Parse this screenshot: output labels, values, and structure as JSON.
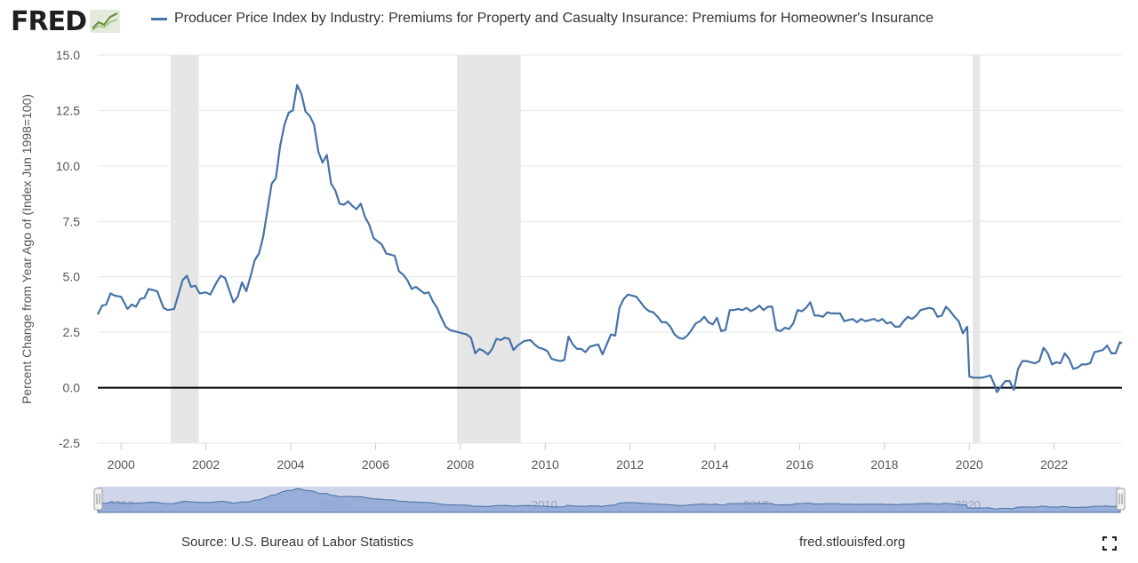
{
  "brand": {
    "logo_text": "FRED"
  },
  "legend": {
    "series_label": "Producer Price Index by Industry: Premiums for Property and Casualty Insurance: Premiums for Homeowner's Insurance",
    "color": "#4572a7"
  },
  "footer": {
    "source": "Source: U.S. Bureau of Labor Statistics",
    "site": "fred.stlouisfed.org"
  },
  "colors": {
    "series": "#4572a7",
    "recession": "#e6e6e6",
    "navigator_fill": "#8ea6d3",
    "navigator_bg": "#cfd6ea",
    "zero_line": "#000000"
  },
  "chart_data": {
    "type": "line",
    "title": "",
    "xlabel": "",
    "ylabel": "Percent Change from Year Ago of (Index Jun 1998=100)",
    "xlim": [
      1999.45,
      2023.6
    ],
    "ylim": [
      -2.5,
      15.0
    ],
    "yticks": [
      "-2.5",
      "0.0",
      "2.5",
      "5.0",
      "7.5",
      "10.0",
      "12.5",
      "15.0"
    ],
    "xticks": [
      "2000",
      "2002",
      "2004",
      "2006",
      "2008",
      "2010",
      "2012",
      "2014",
      "2016",
      "2018",
      "2020",
      "2022"
    ],
    "navigator_ticks": [
      "2000",
      "2005",
      "2010",
      "2015",
      "2020"
    ],
    "grid": "horizontal",
    "recessions": [
      [
        2001.17,
        2001.83
      ],
      [
        2007.92,
        2009.42
      ],
      [
        2020.08,
        2020.25
      ]
    ],
    "series": [
      {
        "name": "Producer Price Index by Industry: Premiums for Property and Casualty Insurance: Premiums for Homeowner's Insurance",
        "points": [
          [
            1999.45,
            3.3
          ],
          [
            1999.55,
            3.7
          ],
          [
            1999.65,
            3.75
          ],
          [
            1999.75,
            4.25
          ],
          [
            1999.85,
            4.15
          ],
          [
            2000.0,
            4.1
          ],
          [
            2000.15,
            3.55
          ],
          [
            2000.25,
            3.75
          ],
          [
            2000.35,
            3.65
          ],
          [
            2000.45,
            4.0
          ],
          [
            2000.55,
            4.05
          ],
          [
            2000.65,
            4.45
          ],
          [
            2000.85,
            4.35
          ],
          [
            2001.0,
            3.6
          ],
          [
            2001.1,
            3.5
          ],
          [
            2001.25,
            3.55
          ],
          [
            2001.45,
            4.85
          ],
          [
            2001.55,
            5.05
          ],
          [
            2001.65,
            4.55
          ],
          [
            2001.75,
            4.6
          ],
          [
            2001.85,
            4.25
          ],
          [
            2002.0,
            4.3
          ],
          [
            2002.1,
            4.2
          ],
          [
            2002.25,
            4.75
          ],
          [
            2002.35,
            5.05
          ],
          [
            2002.45,
            4.95
          ],
          [
            2002.55,
            4.4
          ],
          [
            2002.65,
            3.85
          ],
          [
            2002.75,
            4.1
          ],
          [
            2002.85,
            4.75
          ],
          [
            2002.95,
            4.35
          ],
          [
            2003.05,
            5.0
          ],
          [
            2003.15,
            5.75
          ],
          [
            2003.25,
            6.05
          ],
          [
            2003.35,
            6.8
          ],
          [
            2003.45,
            8.0
          ],
          [
            2003.55,
            9.2
          ],
          [
            2003.65,
            9.45
          ],
          [
            2003.75,
            10.9
          ],
          [
            2003.85,
            11.85
          ],
          [
            2003.95,
            12.4
          ],
          [
            2004.05,
            12.5
          ],
          [
            2004.15,
            13.65
          ],
          [
            2004.25,
            13.25
          ],
          [
            2004.35,
            12.45
          ],
          [
            2004.45,
            12.25
          ],
          [
            2004.55,
            11.85
          ],
          [
            2004.65,
            10.65
          ],
          [
            2004.75,
            10.15
          ],
          [
            2004.85,
            10.5
          ],
          [
            2004.95,
            9.2
          ],
          [
            2005.05,
            8.9
          ],
          [
            2005.15,
            8.3
          ],
          [
            2005.25,
            8.25
          ],
          [
            2005.35,
            8.4
          ],
          [
            2005.45,
            8.2
          ],
          [
            2005.55,
            8.05
          ],
          [
            2005.65,
            8.3
          ],
          [
            2005.75,
            7.7
          ],
          [
            2005.85,
            7.35
          ],
          [
            2005.95,
            6.75
          ],
          [
            2006.05,
            6.6
          ],
          [
            2006.15,
            6.45
          ],
          [
            2006.25,
            6.05
          ],
          [
            2006.35,
            6.0
          ],
          [
            2006.45,
            5.95
          ],
          [
            2006.55,
            5.25
          ],
          [
            2006.65,
            5.1
          ],
          [
            2006.75,
            4.85
          ],
          [
            2006.85,
            4.45
          ],
          [
            2006.95,
            4.55
          ],
          [
            2007.05,
            4.4
          ],
          [
            2007.15,
            4.25
          ],
          [
            2007.25,
            4.3
          ],
          [
            2007.35,
            3.9
          ],
          [
            2007.45,
            3.6
          ],
          [
            2007.55,
            3.15
          ],
          [
            2007.65,
            2.75
          ],
          [
            2007.75,
            2.6
          ],
          [
            2007.85,
            2.55
          ],
          [
            2007.95,
            2.5
          ],
          [
            2008.05,
            2.45
          ],
          [
            2008.15,
            2.4
          ],
          [
            2008.25,
            2.25
          ],
          [
            2008.35,
            1.55
          ],
          [
            2008.45,
            1.75
          ],
          [
            2008.55,
            1.65
          ],
          [
            2008.65,
            1.5
          ],
          [
            2008.75,
            1.75
          ],
          [
            2008.85,
            2.2
          ],
          [
            2008.95,
            2.15
          ],
          [
            2009.05,
            2.25
          ],
          [
            2009.15,
            2.2
          ],
          [
            2009.25,
            1.7
          ],
          [
            2009.35,
            1.9
          ],
          [
            2009.5,
            2.1
          ],
          [
            2009.65,
            2.15
          ],
          [
            2009.75,
            1.95
          ],
          [
            2009.85,
            1.8
          ],
          [
            2009.95,
            1.75
          ],
          [
            2010.05,
            1.65
          ],
          [
            2010.15,
            1.3
          ],
          [
            2010.25,
            1.25
          ],
          [
            2010.35,
            1.2
          ],
          [
            2010.45,
            1.25
          ],
          [
            2010.55,
            2.3
          ],
          [
            2010.65,
            1.95
          ],
          [
            2010.75,
            1.75
          ],
          [
            2010.85,
            1.75
          ],
          [
            2010.95,
            1.6
          ],
          [
            2011.05,
            1.85
          ],
          [
            2011.15,
            1.9
          ],
          [
            2011.25,
            1.95
          ],
          [
            2011.35,
            1.5
          ],
          [
            2011.45,
            1.95
          ],
          [
            2011.55,
            2.4
          ],
          [
            2011.65,
            2.35
          ],
          [
            2011.75,
            3.6
          ],
          [
            2011.85,
            4.0
          ],
          [
            2011.95,
            4.2
          ],
          [
            2012.05,
            4.15
          ],
          [
            2012.15,
            4.1
          ],
          [
            2012.25,
            3.85
          ],
          [
            2012.35,
            3.6
          ],
          [
            2012.45,
            3.45
          ],
          [
            2012.55,
            3.4
          ],
          [
            2012.65,
            3.2
          ],
          [
            2012.75,
            2.95
          ],
          [
            2012.85,
            2.95
          ],
          [
            2012.95,
            2.75
          ],
          [
            2013.05,
            2.4
          ],
          [
            2013.15,
            2.25
          ],
          [
            2013.25,
            2.2
          ],
          [
            2013.35,
            2.35
          ],
          [
            2013.45,
            2.6
          ],
          [
            2013.55,
            2.9
          ],
          [
            2013.65,
            3.0
          ],
          [
            2013.75,
            3.2
          ],
          [
            2013.85,
            2.95
          ],
          [
            2013.95,
            2.85
          ],
          [
            2014.05,
            3.15
          ],
          [
            2014.15,
            2.55
          ],
          [
            2014.25,
            2.6
          ],
          [
            2014.35,
            3.5
          ],
          [
            2014.45,
            3.5
          ],
          [
            2014.55,
            3.55
          ],
          [
            2014.65,
            3.5
          ],
          [
            2014.75,
            3.6
          ],
          [
            2014.85,
            3.45
          ],
          [
            2014.95,
            3.55
          ],
          [
            2015.05,
            3.7
          ],
          [
            2015.15,
            3.5
          ],
          [
            2015.25,
            3.65
          ],
          [
            2015.35,
            3.65
          ],
          [
            2015.45,
            2.6
          ],
          [
            2015.55,
            2.55
          ],
          [
            2015.65,
            2.7
          ],
          [
            2015.75,
            2.65
          ],
          [
            2015.85,
            2.9
          ],
          [
            2015.95,
            3.5
          ],
          [
            2016.05,
            3.45
          ],
          [
            2016.15,
            3.6
          ],
          [
            2016.25,
            3.85
          ],
          [
            2016.35,
            3.25
          ],
          [
            2016.45,
            3.25
          ],
          [
            2016.55,
            3.2
          ],
          [
            2016.65,
            3.4
          ],
          [
            2016.75,
            3.35
          ],
          [
            2016.85,
            3.35
          ],
          [
            2016.95,
            3.35
          ],
          [
            2017.05,
            3.0
          ],
          [
            2017.15,
            3.05
          ],
          [
            2017.25,
            3.1
          ],
          [
            2017.35,
            2.95
          ],
          [
            2017.45,
            3.1
          ],
          [
            2017.55,
            3.0
          ],
          [
            2017.65,
            3.05
          ],
          [
            2017.75,
            3.1
          ],
          [
            2017.85,
            3.0
          ],
          [
            2017.95,
            3.1
          ],
          [
            2018.05,
            2.9
          ],
          [
            2018.15,
            2.95
          ],
          [
            2018.25,
            2.75
          ],
          [
            2018.35,
            2.75
          ],
          [
            2018.45,
            3.0
          ],
          [
            2018.55,
            3.2
          ],
          [
            2018.65,
            3.1
          ],
          [
            2018.75,
            3.25
          ],
          [
            2018.85,
            3.5
          ],
          [
            2018.95,
            3.55
          ],
          [
            2019.05,
            3.6
          ],
          [
            2019.15,
            3.55
          ],
          [
            2019.25,
            3.2
          ],
          [
            2019.35,
            3.25
          ],
          [
            2019.45,
            3.65
          ],
          [
            2019.55,
            3.45
          ],
          [
            2019.65,
            3.2
          ],
          [
            2019.75,
            3.0
          ],
          [
            2019.85,
            2.45
          ],
          [
            2019.95,
            2.75
          ],
          [
            2020.0,
            0.5
          ],
          [
            2020.1,
            0.45
          ],
          [
            2020.2,
            0.45
          ],
          [
            2020.3,
            0.45
          ],
          [
            2020.4,
            0.5
          ],
          [
            2020.5,
            0.55
          ],
          [
            2020.6,
            0.1
          ],
          [
            2020.65,
            -0.2
          ],
          [
            2020.75,
            0.05
          ],
          [
            2020.85,
            0.3
          ],
          [
            2020.95,
            0.3
          ],
          [
            2021.05,
            -0.1
          ],
          [
            2021.15,
            0.85
          ],
          [
            2021.25,
            1.2
          ],
          [
            2021.35,
            1.2
          ],
          [
            2021.45,
            1.15
          ],
          [
            2021.55,
            1.1
          ],
          [
            2021.65,
            1.2
          ],
          [
            2021.75,
            1.8
          ],
          [
            2021.85,
            1.55
          ],
          [
            2021.95,
            1.05
          ],
          [
            2022.05,
            1.15
          ],
          [
            2022.15,
            1.1
          ],
          [
            2022.25,
            1.55
          ],
          [
            2022.35,
            1.3
          ],
          [
            2022.45,
            0.85
          ],
          [
            2022.55,
            0.9
          ],
          [
            2022.65,
            1.05
          ],
          [
            2022.75,
            1.05
          ],
          [
            2022.85,
            1.1
          ],
          [
            2022.95,
            1.6
          ],
          [
            2023.05,
            1.65
          ],
          [
            2023.15,
            1.7
          ],
          [
            2023.25,
            1.9
          ],
          [
            2023.35,
            1.55
          ],
          [
            2023.45,
            1.55
          ],
          [
            2023.55,
            2.05
          ],
          [
            2023.6,
            2.0
          ]
        ]
      }
    ]
  }
}
